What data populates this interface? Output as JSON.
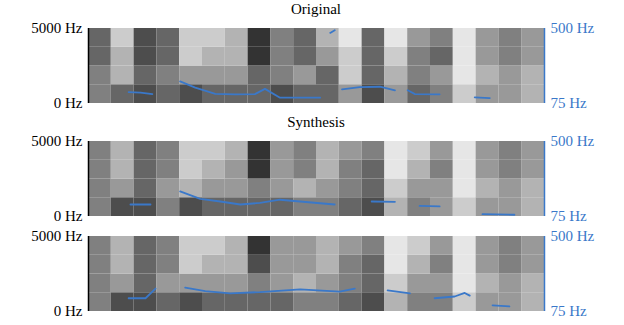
{
  "chart_data": [
    {
      "type": "line",
      "title": "Original",
      "xlim": [
        0,
        1
      ],
      "ylim": [
        0,
        5000
      ],
      "yticks": [
        {
          "value": 0,
          "label": "0 Hz"
        },
        {
          "value": 5000,
          "label": "5000 Hz"
        }
      ],
      "y2lim": [
        75,
        500
      ],
      "y2ticks": [
        {
          "value": 75,
          "label": "75 Hz"
        },
        {
          "value": 500,
          "label": "500 Hz"
        }
      ],
      "spectrogram": {
        "zlim": [
          0,
          1
        ],
        "cells": [
          [
            0.5,
            0.5,
            0.6,
            0.6
          ],
          [
            0.6,
            0.3,
            0.3,
            0.2
          ],
          [
            0.7,
            0.6,
            0.7,
            0.7
          ],
          [
            0.6,
            0.5,
            0.6,
            0.6
          ],
          [
            0.7,
            0.4,
            0.2,
            0.2
          ],
          [
            0.6,
            0.4,
            0.3,
            0.2
          ],
          [
            0.6,
            0.4,
            0.3,
            0.3
          ],
          [
            0.6,
            0.6,
            0.8,
            0.8
          ],
          [
            0.7,
            0.5,
            0.5,
            0.5
          ],
          [
            0.6,
            0.4,
            0.6,
            0.6
          ],
          [
            0.6,
            0.6,
            0.4,
            0.3
          ],
          [
            0.4,
            0.2,
            0.2,
            0.1
          ],
          [
            0.7,
            0.6,
            0.6,
            0.6
          ],
          [
            0.4,
            0.3,
            0.2,
            0.1
          ],
          [
            0.6,
            0.5,
            0.5,
            0.4
          ],
          [
            0.5,
            0.4,
            0.6,
            0.5
          ],
          [
            0.2,
            0.1,
            0.1,
            0.1
          ],
          [
            0.4,
            0.3,
            0.4,
            0.4
          ],
          [
            0.4,
            0.4,
            0.5,
            0.5
          ],
          [
            0.3,
            0.3,
            0.4,
            0.4
          ]
        ]
      },
      "x": [
        0.088,
        0.114,
        0.14,
        0.15,
        0.201,
        0.234,
        0.278,
        0.322,
        0.365,
        0.387,
        0.42,
        0.464,
        0.508,
        0.52,
        0.53,
        0.54,
        0.545,
        0.556,
        0.595,
        0.639,
        0.672,
        0.69,
        0.7,
        0.716,
        0.77,
        0.8,
        0.847,
        0.88
      ],
      "series": [
        {
          "color": "#3a78c9",
          "axis": "y2",
          "values": [
            140,
            137,
            128,
            null,
            200,
            165,
            130,
            127,
            128,
            158,
            108,
            108,
            108,
            null,
            475,
            490,
            null,
            155,
            168,
            170,
            150,
            null,
            150,
            128,
            127,
            null,
            110,
            106
          ]
        }
      ]
    },
    {
      "type": "line",
      "title": "Synthesis",
      "xlim": [
        0,
        1
      ],
      "ylim": [
        0,
        5000
      ],
      "yticks": [
        {
          "value": 0,
          "label": "0 Hz"
        },
        {
          "value": 5000,
          "label": "5000 Hz"
        }
      ],
      "y2lim": [
        75,
        500
      ],
      "y2ticks": [
        {
          "value": 75,
          "label": "75 Hz"
        },
        {
          "value": 500,
          "label": "500 Hz"
        }
      ],
      "spectrogram": {
        "zlim": [
          0,
          1
        ],
        "cells": [
          [
            0.5,
            0.5,
            0.5,
            0.5
          ],
          [
            0.7,
            0.4,
            0.3,
            0.3
          ],
          [
            0.7,
            0.6,
            0.6,
            0.6
          ],
          [
            0.5,
            0.4,
            0.5,
            0.5
          ],
          [
            0.7,
            0.3,
            0.2,
            0.2
          ],
          [
            0.6,
            0.4,
            0.3,
            0.2
          ],
          [
            0.6,
            0.4,
            0.4,
            0.3
          ],
          [
            0.6,
            0.5,
            0.8,
            0.8
          ],
          [
            0.6,
            0.4,
            0.4,
            0.4
          ],
          [
            0.5,
            0.3,
            0.5,
            0.5
          ],
          [
            0.5,
            0.4,
            0.3,
            0.3
          ],
          [
            0.6,
            0.5,
            0.5,
            0.4
          ],
          [
            0.7,
            0.6,
            0.6,
            0.5
          ],
          [
            0.3,
            0.2,
            0.1,
            0.1
          ],
          [
            0.5,
            0.4,
            0.3,
            0.2
          ],
          [
            0.4,
            0.4,
            0.5,
            0.4
          ],
          [
            0.2,
            0.1,
            0.1,
            0.1
          ],
          [
            0.4,
            0.3,
            0.4,
            0.4
          ],
          [
            0.4,
            0.4,
            0.5,
            0.5
          ],
          [
            0.3,
            0.3,
            0.4,
            0.4
          ]
        ]
      },
      "x": [
        0.092,
        0.136,
        0.16,
        0.201,
        0.245,
        0.289,
        0.333,
        0.376,
        0.42,
        0.464,
        0.508,
        0.54,
        0.6,
        0.621,
        0.672,
        0.7,
        0.726,
        0.77,
        0.8,
        0.864,
        0.934
      ],
      "series": [
        {
          "color": "#3a78c9",
          "axis": "y2",
          "values": [
            143,
            143,
            null,
            217,
            175,
            160,
            143,
            152,
            170,
            160,
            150,
            143,
            null,
            160,
            158,
            null,
            135,
            132,
            null,
            88,
            85
          ]
        }
      ]
    },
    {
      "type": "line",
      "xlim": [
        0,
        1
      ],
      "ylim": [
        0,
        5000
      ],
      "yticks": [
        {
          "value": 0,
          "label": "0 Hz"
        },
        {
          "value": 5000,
          "label": "5000 Hz"
        }
      ],
      "y2lim": [
        75,
        500
      ],
      "y2ticks": [
        {
          "value": 75,
          "label": "75 Hz"
        },
        {
          "value": 500,
          "label": "500 Hz"
        }
      ],
      "spectrogram": {
        "zlim": [
          0,
          1
        ],
        "cells": [
          [
            0.5,
            0.5,
            0.5,
            0.5
          ],
          [
            0.7,
            0.4,
            0.3,
            0.3
          ],
          [
            0.7,
            0.6,
            0.6,
            0.6
          ],
          [
            0.6,
            0.4,
            0.5,
            0.5
          ],
          [
            0.7,
            0.4,
            0.2,
            0.2
          ],
          [
            0.6,
            0.4,
            0.3,
            0.2
          ],
          [
            0.6,
            0.4,
            0.3,
            0.3
          ],
          [
            0.6,
            0.5,
            0.7,
            0.8
          ],
          [
            0.6,
            0.4,
            0.4,
            0.4
          ],
          [
            0.5,
            0.3,
            0.4,
            0.4
          ],
          [
            0.5,
            0.4,
            0.3,
            0.3
          ],
          [
            0.6,
            0.5,
            0.5,
            0.4
          ],
          [
            0.7,
            0.6,
            0.6,
            0.5
          ],
          [
            0.3,
            0.2,
            0.1,
            0.1
          ],
          [
            0.5,
            0.4,
            0.3,
            0.2
          ],
          [
            0.5,
            0.4,
            0.5,
            0.4
          ],
          [
            0.2,
            0.1,
            0.1,
            0.1
          ],
          [
            0.4,
            0.3,
            0.4,
            0.4
          ],
          [
            0.4,
            0.4,
            0.5,
            0.5
          ],
          [
            0.3,
            0.3,
            0.4,
            0.4
          ]
        ]
      },
      "x": [
        0.088,
        0.125,
        0.147,
        0.17,
        0.212,
        0.256,
        0.311,
        0.376,
        0.464,
        0.551,
        0.584,
        0.62,
        0.656,
        0.705,
        0.73,
        0.759,
        0.803,
        0.825,
        0.836,
        0.85,
        0.886,
        0.923
      ],
      "series": [
        {
          "color": "#3a78c9",
          "axis": "y2",
          "values": [
            150,
            150,
            205,
            null,
            210,
            190,
            178,
            185,
            200,
            188,
            205,
            null,
            195,
            178,
            null,
            150,
            160,
            180,
            165,
            null,
            110,
            104
          ]
        }
      ]
    }
  ]
}
